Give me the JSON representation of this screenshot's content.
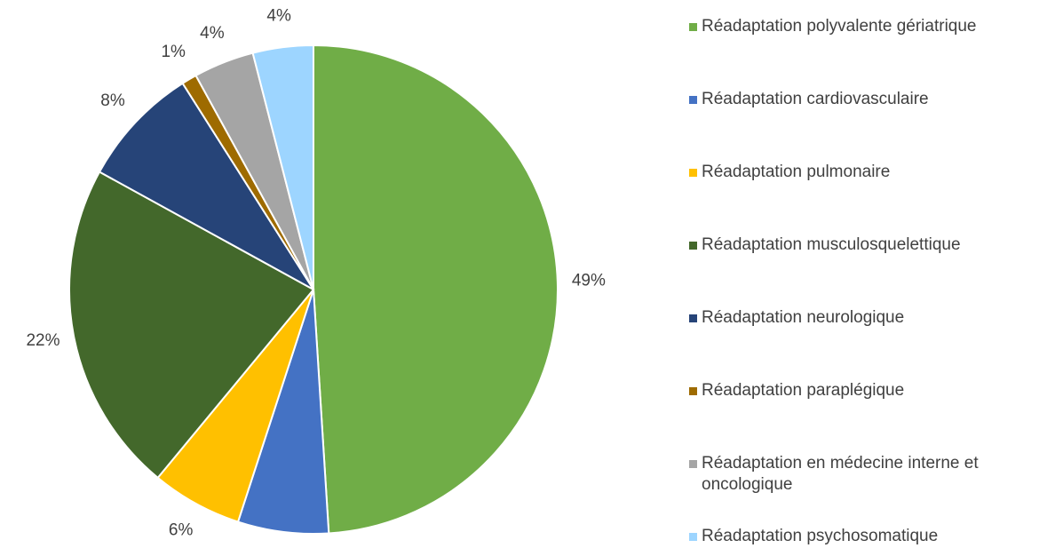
{
  "chart_data": {
    "type": "pie",
    "categories": [
      "Réadaptation polyvalente gériatrique",
      "Réadaptation cardiovasculaire",
      "Réadaptation pulmonaire",
      "Réadaptation musculosquelettique",
      "Réadaptation neurologique",
      "Réadaptation paraplégique",
      "Réadaptation en médecine interne et oncologique",
      "Réadaptation psychosomatique"
    ],
    "values": [
      49,
      6,
      6,
      22,
      8,
      1,
      4,
      4
    ],
    "value_labels": [
      "49%",
      null,
      "6%",
      "22%",
      "8%",
      "1%",
      "4%",
      "4%"
    ],
    "colors": [
      "#70ad47",
      "#4472c4",
      "#ffc000",
      "#43682b",
      "#264478",
      "#9e6b00",
      "#a5a5a5",
      "#9dd5ff"
    ],
    "legend": "right"
  }
}
